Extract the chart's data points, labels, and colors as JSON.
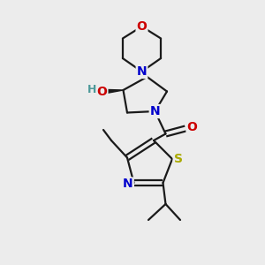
{
  "bg_color": "#ececec",
  "bond_color": "#1a1a1a",
  "N_color": "#0000cc",
  "O_color": "#cc0000",
  "S_color": "#aaaa00",
  "H_color": "#4d9999",
  "line_width": 1.6,
  "font_size_atom": 10,
  "figsize": [
    3.0,
    3.0
  ],
  "dpi": 100,
  "xlim": [
    0,
    10
  ],
  "ylim": [
    0,
    10
  ]
}
